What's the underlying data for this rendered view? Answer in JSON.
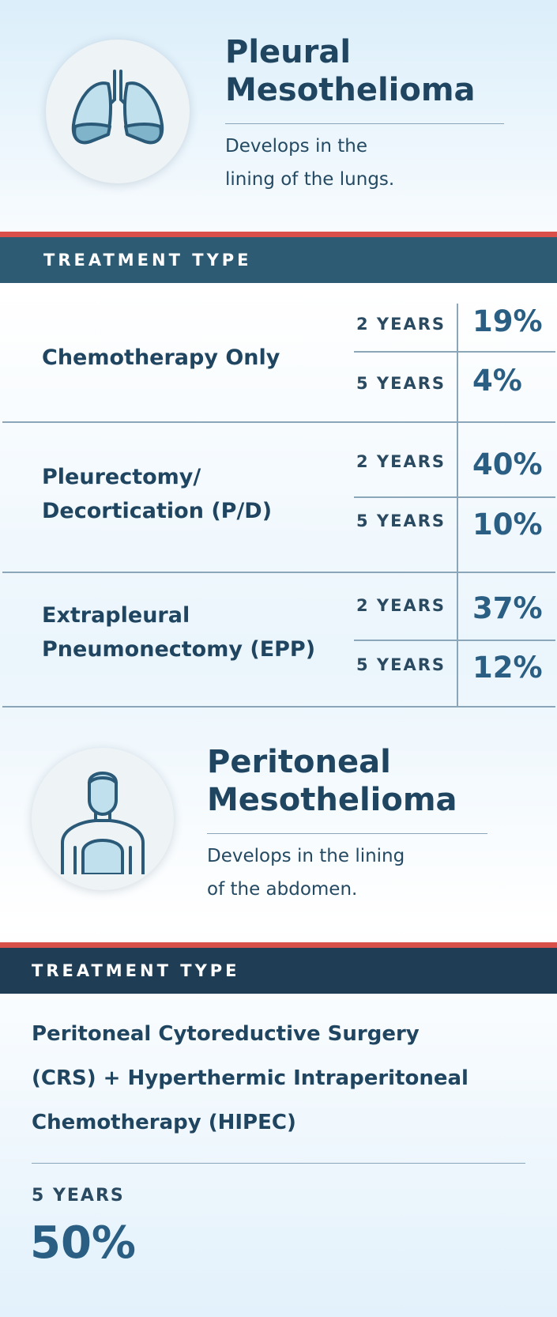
{
  "pleural": {
    "title_line1": "Pleural",
    "title_line2": "Mesothelioma",
    "desc_line1": "Develops in the",
    "desc_line2": "lining of the lungs.",
    "icon": "lungs-icon"
  },
  "pleural_treatment": {
    "header": "TREATMENT TYPE",
    "rows": [
      {
        "name_line1": "Chemotherapy Only",
        "name_line2": "",
        "y2_label": "2 YEARS",
        "y2_value": "19%",
        "y5_label": "5 YEARS",
        "y5_value": "4%"
      },
      {
        "name_line1": "Pleurectomy/",
        "name_line2": "Decortication (P/D)",
        "y2_label": "2 YEARS",
        "y2_value": "40%",
        "y5_label": "5 YEARS",
        "y5_value": "10%"
      },
      {
        "name_line1": "Extrapleural",
        "name_line2": "Pneumonectomy (EPP)",
        "y2_label": "2 YEARS",
        "y2_value": "37%",
        "y5_label": "5 YEARS",
        "y5_value": "12%"
      }
    ]
  },
  "peritoneal": {
    "title_line1": "Peritoneal",
    "title_line2": "Mesothelioma",
    "desc_line1": "Develops in the lining",
    "desc_line2": "of the abdomen.",
    "icon": "person-abdomen-icon"
  },
  "peritoneal_treatment": {
    "header": "TREATMENT TYPE",
    "name_line1": "Peritoneal Cytoreductive Surgery",
    "name_line2": "(CRS) + Hyperthermic Intraperitoneal",
    "name_line3": "Chemotherapy (HIPEC)",
    "y5_label": "5 YEARS",
    "y5_value": "50%"
  },
  "colors": {
    "accent_red": "#d94f4a",
    "bar_blue": "#2d5b74",
    "bar_navy": "#1f3e55",
    "value_blue": "#2a5e82"
  }
}
